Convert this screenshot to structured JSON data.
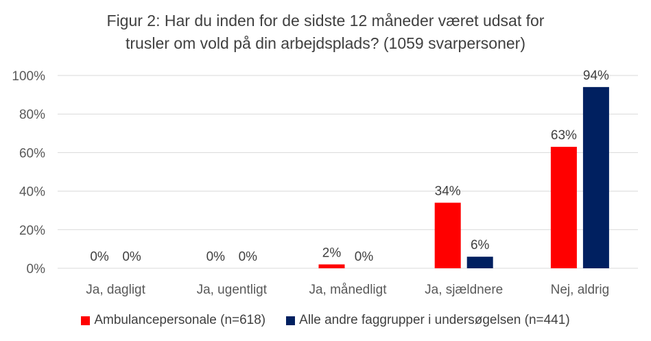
{
  "chart_data": {
    "type": "bar",
    "title_lines": [
      "Figur 2: Har du inden for de sidste 12 måneder været udsat for",
      "trusler om vold på din arbejdsplads? (1059 svarpersoner)"
    ],
    "categories": [
      "Ja, dagligt",
      "Ja, ugentligt",
      "Ja, månedligt",
      "Ja, sjældnere",
      "Nej, aldrig"
    ],
    "series": [
      {
        "name": "Ambulancepersonale (n=618)",
        "color": "#ff0000",
        "values": [
          0,
          0,
          2,
          34,
          63
        ],
        "labels": [
          "0%",
          "0%",
          "2%",
          "34%",
          "63%"
        ]
      },
      {
        "name": "Alle andre faggrupper i undersøgelsen (n=441)",
        "color": "#002060",
        "values": [
          0,
          0,
          0,
          6,
          94
        ],
        "labels": [
          "0%",
          "0%",
          "0%",
          "6%",
          "94%"
        ]
      }
    ],
    "ylim": [
      0,
      100
    ],
    "yticks": [
      0,
      20,
      40,
      60,
      80,
      100
    ],
    "ytick_labels": [
      "0%",
      "20%",
      "40%",
      "60%",
      "80%",
      "100%"
    ],
    "grid": true,
    "legend_position": "bottom",
    "xlabel": "",
    "ylabel": ""
  }
}
